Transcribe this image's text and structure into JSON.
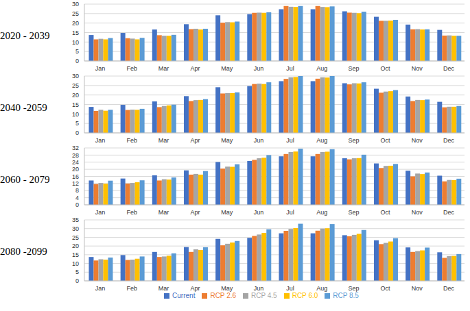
{
  "chart_data": [
    {
      "type": "bar",
      "title": "2020 - 2039",
      "categories": [
        "Jan",
        "Feb",
        "Mar",
        "Apr",
        "May",
        "Jun",
        "Jul",
        "Aug",
        "Sep",
        "Oct",
        "Nov",
        "Dec"
      ],
      "ylim": [
        0,
        30
      ],
      "yticks": [
        0,
        5,
        10,
        15,
        20,
        25,
        30
      ],
      "grid": true,
      "series": [
        {
          "name": "Current",
          "color": "#4472c4",
          "values": [
            13.7,
            14.8,
            16.6,
            19.4,
            24.1,
            24.7,
            27.3,
            27.3,
            26.2,
            23.3,
            19.2,
            16.4
          ]
        },
        {
          "name": "RCP 2.6",
          "color": "#ed7d31",
          "values": [
            11.4,
            12.0,
            13.6,
            16.8,
            20.2,
            25.4,
            29.0,
            29.0,
            25.5,
            21.2,
            16.7,
            13.4
          ]
        },
        {
          "name": "RCP 4.5",
          "color": "#a5a5a5",
          "values": [
            11.7,
            11.8,
            13.3,
            17.0,
            20.5,
            25.5,
            28.6,
            28.5,
            25.4,
            21.2,
            16.8,
            13.5
          ]
        },
        {
          "name": "RCP 6.0",
          "color": "#ffc000",
          "values": [
            11.4,
            11.4,
            13.3,
            16.6,
            20.4,
            25.4,
            28.5,
            28.4,
            25.2,
            21.3,
            16.6,
            13.3
          ]
        },
        {
          "name": "RCP 8.5",
          "color": "#5b9bd5",
          "values": [
            12.1,
            12.2,
            13.8,
            17.0,
            20.8,
            25.7,
            29.0,
            28.8,
            26.0,
            21.7,
            16.7,
            13.3
          ]
        }
      ]
    },
    {
      "type": "bar",
      "title": "2040 -2059",
      "categories": [
        "Jan",
        "Feb",
        "Mar",
        "Apr",
        "May",
        "Jun",
        "Jul",
        "Aug",
        "Sep",
        "Oct",
        "Nov",
        "Dec"
      ],
      "ylim": [
        0,
        30
      ],
      "yticks": [
        0,
        5,
        10,
        15,
        20,
        25,
        30
      ],
      "grid": true,
      "series": [
        {
          "name": "Current",
          "color": "#4472c4",
          "values": [
            13.7,
            14.8,
            16.6,
            19.4,
            24.1,
            24.7,
            27.3,
            27.3,
            26.2,
            23.3,
            19.2,
            16.4
          ]
        },
        {
          "name": "RCP 2.6",
          "color": "#ed7d31",
          "values": [
            11.6,
            12.1,
            13.6,
            16.8,
            20.8,
            25.8,
            28.5,
            28.6,
            25.6,
            21.2,
            16.8,
            13.5
          ]
        },
        {
          "name": "RCP 4.5",
          "color": "#a5a5a5",
          "values": [
            12.2,
            12.3,
            14.2,
            17.3,
            21.0,
            26.0,
            29.3,
            29.3,
            26.2,
            21.8,
            17.4,
            13.8
          ]
        },
        {
          "name": "RCP 6.0",
          "color": "#ffc000",
          "values": [
            11.7,
            12.2,
            14.5,
            17.4,
            21.0,
            25.8,
            29.5,
            29.2,
            26.1,
            22.0,
            17.3,
            13.8
          ]
        },
        {
          "name": "RCP 8.5",
          "color": "#5b9bd5",
          "values": [
            12.2,
            12.7,
            14.9,
            17.8,
            21.4,
            26.7,
            30.0,
            30.0,
            26.7,
            22.6,
            17.6,
            14.2
          ]
        }
      ]
    },
    {
      "type": "bar",
      "title": "2060 - 2079",
      "categories": [
        "Jan",
        "Feb",
        "Mar",
        "Apr",
        "May",
        "Jun",
        "Jul",
        "Aug",
        "Sep",
        "Oct",
        "Nov",
        "Dec"
      ],
      "ylim": [
        0,
        32
      ],
      "yticks": [
        0,
        4,
        8,
        12,
        16,
        20,
        24,
        28,
        32
      ],
      "grid": true,
      "series": [
        {
          "name": "Current",
          "color": "#4472c4",
          "values": [
            13.7,
            14.8,
            16.6,
            19.4,
            24.1,
            24.7,
            27.3,
            27.3,
            26.2,
            23.3,
            19.2,
            16.4
          ]
        },
        {
          "name": "RCP 2.6",
          "color": "#ed7d31",
          "values": [
            11.7,
            12.0,
            13.7,
            17.0,
            20.4,
            25.3,
            28.6,
            28.6,
            25.6,
            20.7,
            16.0,
            13.2
          ]
        },
        {
          "name": "RCP 4.5",
          "color": "#a5a5a5",
          "values": [
            12.3,
            12.3,
            14.4,
            17.4,
            21.5,
            26.2,
            29.7,
            29.7,
            26.2,
            21.9,
            17.6,
            14.0
          ]
        },
        {
          "name": "RCP 6.0",
          "color": "#ffc000",
          "values": [
            11.9,
            12.7,
            14.2,
            17.0,
            21.4,
            26.5,
            30.0,
            29.9,
            26.3,
            22.0,
            17.3,
            13.9
          ]
        },
        {
          "name": "RCP 8.5",
          "color": "#5b9bd5",
          "values": [
            13.6,
            13.8,
            15.4,
            19.0,
            22.8,
            28.0,
            31.6,
            31.3,
            28.2,
            23.0,
            18.2,
            14.7
          ]
        }
      ]
    },
    {
      "type": "bar",
      "title": "2080 -2099",
      "categories": [
        "Jan",
        "Feb",
        "Mar",
        "Apr",
        "May",
        "Jun",
        "Jul",
        "Aug",
        "Sep",
        "Oct",
        "Nov",
        "Dec"
      ],
      "ylim": [
        0,
        35
      ],
      "yticks": [
        0,
        5,
        10,
        15,
        20,
        25,
        30,
        35
      ],
      "grid": true,
      "legend": "bottom",
      "series": [
        {
          "name": "Current",
          "color": "#4472c4",
          "values": [
            13.7,
            14.8,
            16.6,
            19.4,
            24.1,
            24.7,
            27.3,
            27.3,
            26.2,
            23.3,
            19.2,
            16.4
          ]
        },
        {
          "name": "RCP 2.6",
          "color": "#ed7d31",
          "values": [
            11.7,
            12.0,
            13.7,
            16.6,
            20.4,
            25.8,
            28.7,
            28.8,
            25.6,
            21.1,
            16.6,
            13.2
          ]
        },
        {
          "name": "RCP 4.5",
          "color": "#a5a5a5",
          "values": [
            12.4,
            12.2,
            14.0,
            18.1,
            21.3,
            26.6,
            29.8,
            30.0,
            26.4,
            21.8,
            17.1,
            14.2
          ]
        },
        {
          "name": "RCP 6.0",
          "color": "#ffc000",
          "values": [
            12.2,
            12.7,
            14.4,
            17.7,
            22.0,
            27.5,
            30.3,
            30.2,
            27.0,
            22.6,
            17.5,
            14.3
          ]
        },
        {
          "name": "RCP 8.5",
          "color": "#5b9bd5",
          "values": [
            13.4,
            14.0,
            15.8,
            19.3,
            22.9,
            29.6,
            32.8,
            32.6,
            29.2,
            24.5,
            19.1,
            15.4
          ]
        }
      ]
    }
  ]
}
